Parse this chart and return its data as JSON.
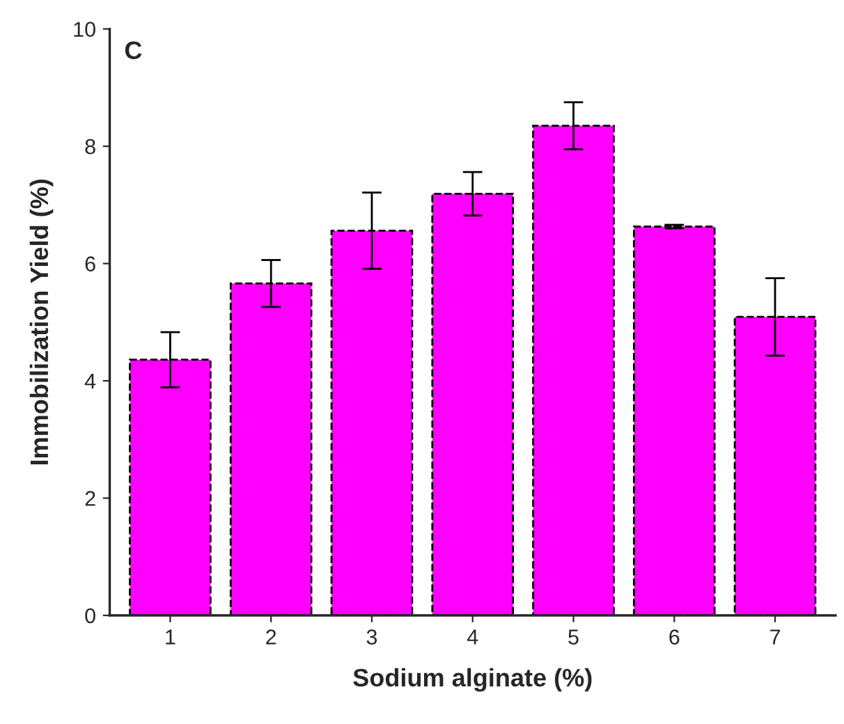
{
  "chart_data": {
    "type": "bar",
    "xlabel": "Sodium alginate (%)",
    "ylabel": "Immobilization Yield (%)",
    "annotations": [
      "C"
    ],
    "categories": [
      "1",
      "2",
      "3",
      "4",
      "5",
      "6",
      "7"
    ],
    "values": [
      4.36,
      5.66,
      6.56,
      7.19,
      8.35,
      6.63,
      5.09
    ],
    "errors": [
      0.47,
      0.4,
      0.65,
      0.37,
      0.4,
      0.03,
      0.66
    ],
    "color": "#ff00ff",
    "ylim": [
      0,
      10
    ],
    "yticks": [
      0,
      2,
      4,
      6,
      8,
      10
    ],
    "grid": false
  }
}
